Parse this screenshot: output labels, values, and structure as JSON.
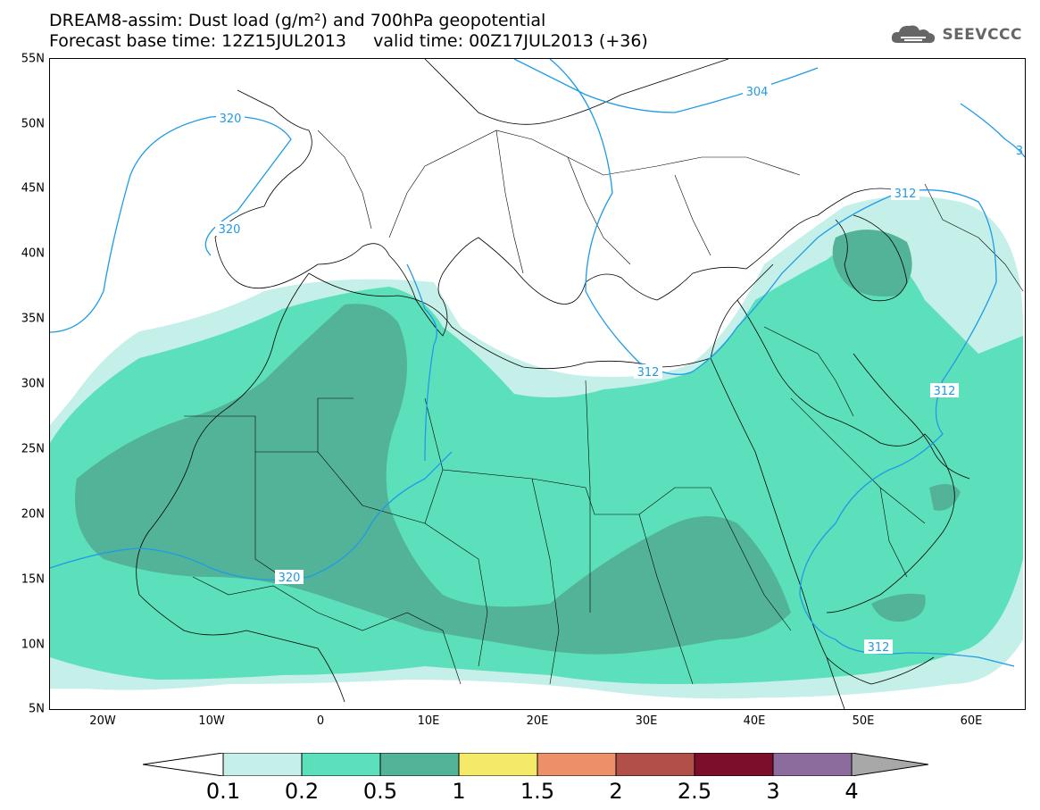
{
  "title": {
    "line1": "DREAM8-assim: Dust load (g/m²) and 700hPa geopotential",
    "line2": "Forecast base time: 12Z15JUL2013     valid time: 00Z17JUL2013 (+36)"
  },
  "logo": {
    "text": "SEEVCCC",
    "icon": "cloud-logo-icon",
    "color": "#666666"
  },
  "map": {
    "projection": "cylindrical equidistant",
    "lon_range": [
      -25,
      65
    ],
    "lat_range": [
      5,
      55
    ],
    "lat_labels": [
      "55N",
      "50N",
      "45N",
      "40N",
      "35N",
      "30N",
      "25N",
      "20N",
      "15N",
      "10N",
      "5N"
    ],
    "lon_labels": [
      "20W",
      "10W",
      "0",
      "10E",
      "20E",
      "30E",
      "40E",
      "50E",
      "60E"
    ],
    "contour_color": "#1e9be6",
    "contour_labels": [
      "320",
      "320",
      "304",
      "320",
      "312",
      "312",
      "312",
      "312",
      "3"
    ]
  },
  "colorbar": {
    "labels": [
      "0.1",
      "0.2",
      "0.5",
      "1",
      "1.5",
      "2",
      "2.5",
      "3",
      "4"
    ],
    "colors": [
      "#ffffff",
      "#c5efe9",
      "#5ce0bc",
      "#53b398",
      "#f5e96a",
      "#ec906a",
      "#b05048",
      "#7c0e2a",
      "#8c6c9c",
      "#a8a8a8"
    ]
  }
}
